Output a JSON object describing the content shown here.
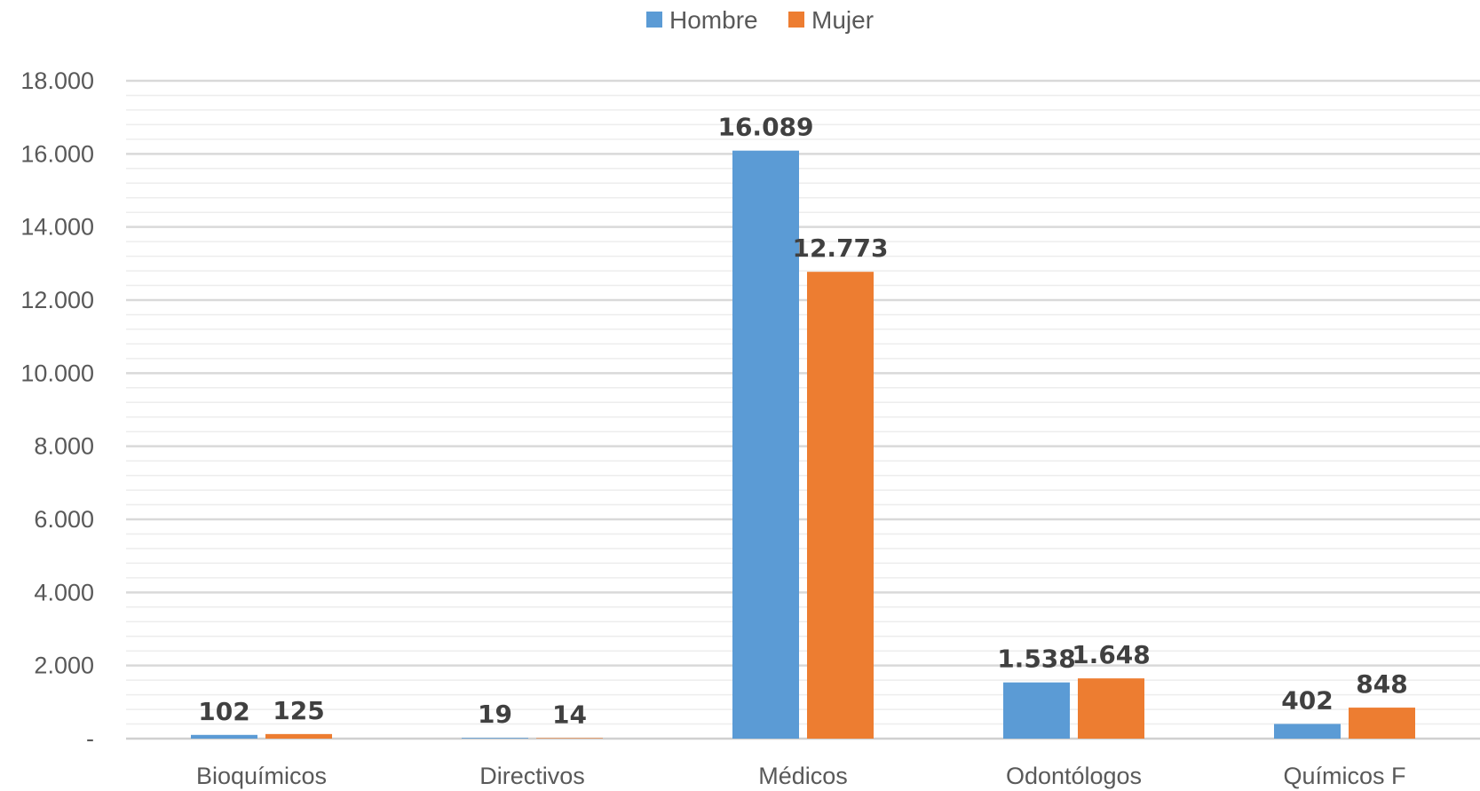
{
  "chart_data": {
    "type": "bar",
    "title": "",
    "xlabel": "",
    "ylabel": "",
    "categories": [
      "Bioquímicos",
      "Directivos",
      "Médicos",
      "Odontólogos",
      "Químicos F"
    ],
    "series": [
      {
        "name": "Hombre",
        "color": "#5B9BD5",
        "values": [
          102,
          19,
          16089,
          1538,
          402
        ],
        "labels": [
          "102",
          "19",
          "16.089",
          "1.538",
          "402"
        ]
      },
      {
        "name": "Mujer",
        "color": "#ED7D31",
        "values": [
          125,
          14,
          12773,
          1648,
          848
        ],
        "labels": [
          "125",
          "14",
          "12.773",
          "1.648",
          "848"
        ]
      }
    ],
    "ylim": [
      0,
      18000
    ],
    "yticks": [
      0,
      2000,
      4000,
      6000,
      8000,
      10000,
      12000,
      14000,
      16000,
      18000
    ],
    "ytick_labels": [
      "-",
      "2.000",
      "4.000",
      "6.000",
      "8.000",
      "10.000",
      "12.000",
      "14.000",
      "16.000",
      "18.000"
    ],
    "grid": true,
    "legend_position": "top-center"
  }
}
